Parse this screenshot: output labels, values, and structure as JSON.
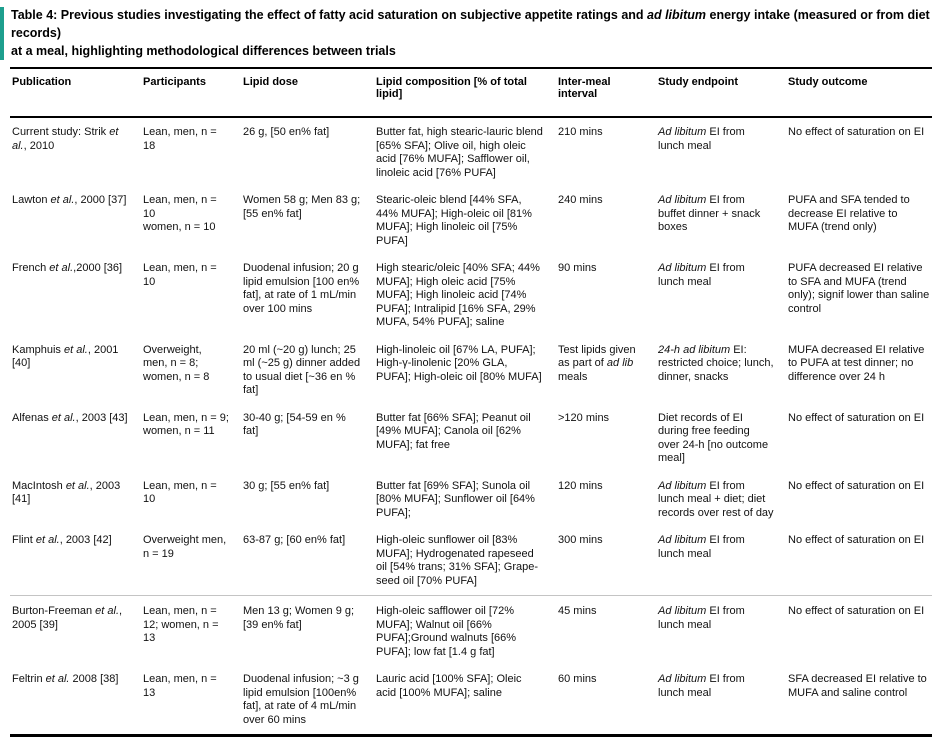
{
  "accent_color": "#1d9f8e",
  "title": {
    "segments": [
      {
        "t": "Table 4: Previous studies investigating the effect of fatty acid saturation on subjective appetite ratings and "
      },
      {
        "t": "ad libitum",
        "i": true
      },
      {
        "t": " energy intake (measured or from diet records)\nat a meal, highlighting methodological differences between trials"
      }
    ]
  },
  "table": {
    "columns": [
      "Publication",
      "Participants",
      "Lipid dose",
      "Lipid composition [% of total lipid]",
      "Inter-meal interval",
      "Study endpoint",
      "Study outcome"
    ],
    "rows": [
      {
        "publication": [
          {
            "t": "Current study: Strik "
          },
          {
            "t": "et al.",
            "i": true
          },
          {
            "t": ", 2010"
          }
        ],
        "participants": "Lean, men, n = 18",
        "lipid_dose": "26 g, [50 en% fat]",
        "lipid_composition": "Butter fat, high stearic-lauric blend [65% SFA]; Olive oil, high oleic acid [76% MUFA]; Safflower oil, linoleic acid [76% PUFA]",
        "interval": "210 mins",
        "endpoint": [
          {
            "t": "Ad libitum",
            "i": true
          },
          {
            "t": " EI from lunch meal"
          }
        ],
        "outcome": "No effect of saturation on EI"
      },
      {
        "publication": [
          {
            "t": "Lawton "
          },
          {
            "t": "et al.",
            "i": true
          },
          {
            "t": ", 2000 [37]"
          }
        ],
        "participants": "Lean, men, n = 10\nwomen, n = 10",
        "lipid_dose": "Women 58 g; Men 83 g; [55 en% fat]",
        "lipid_composition": "Stearic-oleic blend [44% SFA, 44% MUFA]; High-oleic oil [81% MUFA]; High linoleic oil [75% PUFA]",
        "interval": "240 mins",
        "endpoint": [
          {
            "t": "Ad libitum",
            "i": true
          },
          {
            "t": " EI from buffet dinner + snack boxes"
          }
        ],
        "outcome": "PUFA and SFA tended to decrease EI relative to MUFA (trend only)"
      },
      {
        "publication": [
          {
            "t": "French "
          },
          {
            "t": "et al.",
            "i": true
          },
          {
            "t": ",2000 [36]"
          }
        ],
        "participants": "Lean, men, n = 10",
        "lipid_dose": "Duodenal infusion; 20 g lipid emulsion [100 en% fat], at rate of 1 mL/min over 100 mins",
        "lipid_composition": "High stearic/oleic [40% SFA; 44% MUFA]; High oleic acid [75% MUFA]; High linoleic acid [74% PUFA]; Intralipid [16% SFA, 29% MUFA, 54% PUFA]; saline",
        "interval": "90 mins",
        "endpoint": [
          {
            "t": "Ad libitum",
            "i": true
          },
          {
            "t": " EI from lunch meal"
          }
        ],
        "outcome": "PUFA decreased EI relative to SFA and MUFA (trend only); signif lower than saline control"
      },
      {
        "publication": [
          {
            "t": "Kamphuis "
          },
          {
            "t": "et al.",
            "i": true
          },
          {
            "t": ", 2001 [40]"
          }
        ],
        "participants": "Overweight, men, n = 8; women, n = 8",
        "lipid_dose": "20 ml (~20 g) lunch; 25 ml (~25 g) dinner added to usual diet [~36 en % fat]",
        "lipid_composition": "High-linoleic oil [67% LA, PUFA]; High-γ-linolenic [20% GLA, PUFA]; High-oleic oil [80% MUFA]",
        "interval": [
          {
            "t": "Test lipids given as part of "
          },
          {
            "t": "ad lib",
            "i": true
          },
          {
            "t": " meals"
          }
        ],
        "endpoint": [
          {
            "t": "24-h ad libitum",
            "i": true
          },
          {
            "t": " EI: restricted choice; lunch, dinner, snacks"
          }
        ],
        "outcome": "MUFA decreased EI relative to PUFA at test dinner; no difference over 24 h"
      },
      {
        "publication": [
          {
            "t": "Alfenas "
          },
          {
            "t": "et al.",
            "i": true
          },
          {
            "t": ", 2003 [43]"
          }
        ],
        "participants": "Lean, men, n = 9; women, n = 11",
        "lipid_dose": "30-40 g; [54-59 en % fat]",
        "lipid_composition": "Butter fat [66% SFA]; Peanut oil [49% MUFA]; Canola oil [62% MUFA]; fat free",
        "interval": ">120 mins",
        "endpoint": "Diet records of EI during free feeding over 24-h [no outcome meal]",
        "outcome": "No effect of saturation on EI"
      },
      {
        "publication": [
          {
            "t": "MacIntosh "
          },
          {
            "t": "et al.",
            "i": true
          },
          {
            "t": ", 2003 [41]"
          }
        ],
        "participants": "Lean, men, n = 10",
        "lipid_dose": "30 g; [55 en% fat]",
        "lipid_composition": "Butter fat [69% SFA]; Sunola oil [80% MUFA]; Sunflower oil [64% PUFA];",
        "interval": "120 mins",
        "endpoint": [
          {
            "t": "Ad libitum",
            "i": true
          },
          {
            "t": " EI from lunch meal + diet; diet records over rest of day"
          }
        ],
        "outcome": "No effect of saturation on EI"
      },
      {
        "publication": [
          {
            "t": "Flint "
          },
          {
            "t": "et al.",
            "i": true
          },
          {
            "t": ", 2003 [42]"
          }
        ],
        "participants": "Overweight men, n = 19",
        "lipid_dose": "63-87 g; [60 en% fat]",
        "lipid_composition": "High-oleic sunflower oil [83% MUFA]; Hydrogenated rapeseed oil [54% trans; 31% SFA]; Grape- seed oil [70% PUFA]",
        "interval": "300 mins",
        "endpoint": [
          {
            "t": "Ad libitum",
            "i": true
          },
          {
            "t": " EI from lunch meal"
          }
        ],
        "outcome": "No effect of saturation on EI"
      },
      {
        "publication": [
          {
            "t": "Burton-Freeman "
          },
          {
            "t": "et al.",
            "i": true
          },
          {
            "t": ", 2005 [39]"
          }
        ],
        "participants": "Lean, men, n = 12; women, n = 13",
        "lipid_dose": "Men 13 g; Women 9 g; [39 en% fat]",
        "lipid_composition": "High-oleic safflower oil [72% MUFA]; Walnut oil [66% PUFA];Ground walnuts [66% PUFA]; low fat [1.4 g fat]",
        "interval": "45 mins",
        "endpoint": [
          {
            "t": "Ad libitum",
            "i": true
          },
          {
            "t": " EI from lunch meal"
          }
        ],
        "outcome": "No effect of saturation on EI"
      },
      {
        "publication": [
          {
            "t": "Feltrin "
          },
          {
            "t": "et al.",
            "i": true
          },
          {
            "t": " 2008 [38]"
          }
        ],
        "participants": "Lean, men, n = 13",
        "lipid_dose": "Duodenal infusion; ~3 g lipid emulsion [100en% fat], at rate of 4 mL/min over 60 mins",
        "lipid_composition": "Lauric acid [100% SFA]; Oleic acid [100% MUFA]; saline",
        "interval": "60 mins",
        "endpoint": [
          {
            "t": "Ad libitum",
            "i": true
          },
          {
            "t": " EI from lunch meal"
          }
        ],
        "outcome": "SFA decreased EI relative to MUFA and saline control"
      }
    ]
  }
}
